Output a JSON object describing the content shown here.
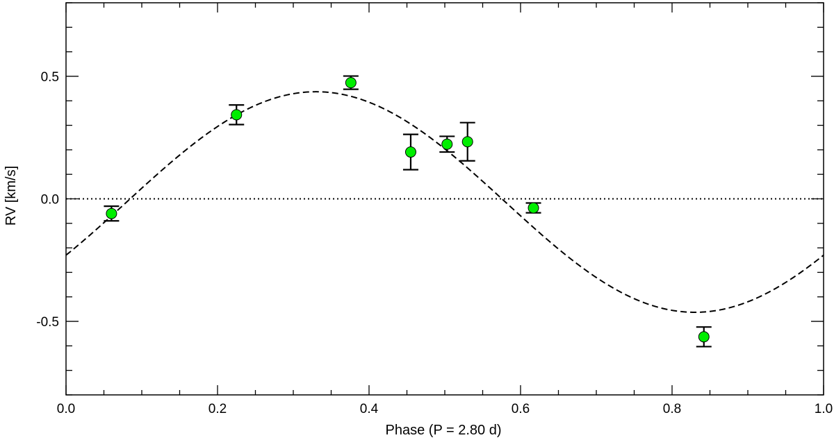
{
  "chart_data": {
    "type": "scatter",
    "title": "",
    "xlabel": "Phase (P = 2.80 d)",
    "ylabel": "RV [km/s]",
    "xlim": [
      0.0,
      1.0
    ],
    "ylim": [
      -0.8,
      0.8
    ],
    "x_ticks": [
      {
        "value": 0.0,
        "label": "0.0"
      },
      {
        "value": 0.2,
        "label": "0.2"
      },
      {
        "value": 0.4,
        "label": "0.4"
      },
      {
        "value": 0.6,
        "label": "0.6"
      },
      {
        "value": 0.8,
        "label": "0.8"
      },
      {
        "value": 1.0,
        "label": "1.0"
      }
    ],
    "y_ticks": [
      {
        "value": -0.5,
        "label": "-0.5"
      },
      {
        "value": 0.0,
        "label": "0.0"
      },
      {
        "value": 0.5,
        "label": "0.5"
      }
    ],
    "x_minor_step": 0.05,
    "y_minor_step": 0.1,
    "grid": false,
    "points": [
      {
        "x": 0.06,
        "y": -0.06,
        "err": 0.03
      },
      {
        "x": 0.225,
        "y": 0.343,
        "err": 0.04
      },
      {
        "x": 0.376,
        "y": 0.474,
        "err": 0.027
      },
      {
        "x": 0.455,
        "y": 0.191,
        "err": 0.072
      },
      {
        "x": 0.503,
        "y": 0.223,
        "err": 0.032
      },
      {
        "x": 0.53,
        "y": 0.233,
        "err": 0.078
      },
      {
        "x": 0.617,
        "y": -0.037,
        "err": 0.02
      },
      {
        "x": 0.842,
        "y": -0.563,
        "err": 0.04
      }
    ],
    "model_curve": {
      "style": "dashed",
      "function": "sine",
      "amplitude": 0.45,
      "offset": -0.013,
      "phase_zero": 0.08
    },
    "reference_line": {
      "y": 0.0,
      "style": "dotted"
    },
    "colors": {
      "marker_fill": "#00ee00",
      "marker_edge": "#000000",
      "line": "#000000"
    }
  }
}
